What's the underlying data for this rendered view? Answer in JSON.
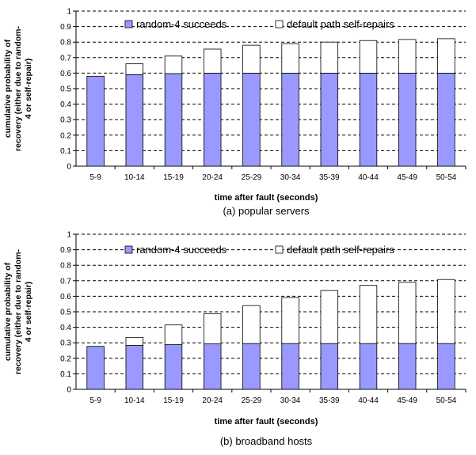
{
  "chart_data": [
    {
      "type": "bar",
      "stacked": true,
      "caption": "(a) popular servers",
      "xlabel": "time after fault (seconds)",
      "ylabel_lines": [
        "cumulative probability of",
        "recovery (either due to random-",
        "4 or self-repair)"
      ],
      "ylim": [
        0,
        1
      ],
      "ytick_labels": [
        "0",
        "0.1",
        "0.2",
        "0.3",
        "0.4",
        "0.5",
        "0.6",
        "0.7",
        "0.8",
        "0.9",
        "1"
      ],
      "grid": "horizontal dashed",
      "legend_position": "top",
      "categories": [
        "5-9",
        "10-14",
        "15-19",
        "20-24",
        "25-29",
        "30-34",
        "35-39",
        "40-44",
        "45-49",
        "50-54"
      ],
      "series": [
        {
          "name": "random-4 succeeds",
          "color": "#9999ff",
          "values": [
            0.58,
            0.59,
            0.597,
            0.6,
            0.6,
            0.6,
            0.6,
            0.6,
            0.6,
            0.6
          ]
        },
        {
          "name": "default path self-repairs",
          "color": "#ffffff",
          "values": [
            0.0,
            0.07,
            0.113,
            0.155,
            0.18,
            0.19,
            0.2,
            0.21,
            0.217,
            0.222
          ]
        }
      ]
    },
    {
      "type": "bar",
      "stacked": true,
      "caption": "(b) broadband hosts",
      "xlabel": "time after fault (seconds)",
      "ylabel_lines": [
        "cumulative probability of",
        "recovery (either due to random-",
        "4 or self-repair)"
      ],
      "ylim": [
        0,
        1
      ],
      "ytick_labels": [
        "0",
        "0.1",
        "0.2",
        "0.3",
        "0.4",
        "0.5",
        "0.6",
        "0.7",
        "0.8",
        "0.9",
        "1"
      ],
      "grid": "horizontal dashed",
      "legend_position": "top",
      "categories": [
        "5-9",
        "10-14",
        "15-19",
        "20-24",
        "25-29",
        "30-34",
        "35-39",
        "40-44",
        "45-49",
        "50-54"
      ],
      "series": [
        {
          "name": "random-4 succeeds",
          "color": "#9999ff",
          "values": [
            0.277,
            0.283,
            0.288,
            0.293,
            0.295,
            0.295,
            0.295,
            0.295,
            0.295,
            0.295
          ]
        },
        {
          "name": "default path self-repairs",
          "color": "#ffffff",
          "values": [
            0.0,
            0.052,
            0.127,
            0.195,
            0.245,
            0.297,
            0.342,
            0.375,
            0.395,
            0.413
          ]
        }
      ]
    }
  ]
}
